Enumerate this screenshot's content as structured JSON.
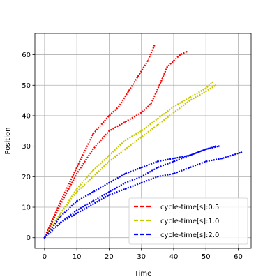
{
  "chart_data": {
    "type": "line",
    "title": "",
    "xlabel": "Time",
    "ylabel": "Position",
    "xlim": [
      -3,
      64
    ],
    "ylim": [
      -3.5,
      67
    ],
    "xticks": [
      0,
      10,
      20,
      30,
      40,
      50,
      60
    ],
    "yticks": [
      0,
      10,
      20,
      30,
      40,
      50,
      60
    ],
    "grid": true,
    "legend_position": "lower-right",
    "line_style": "dashed",
    "series": [
      {
        "name": "cycle-time[s]:0.5",
        "color": "#ff0000",
        "x": [
          0,
          5,
          10,
          15,
          20,
          25,
          30,
          33,
          36,
          38,
          40,
          42,
          44
        ],
        "y": [
          0,
          11,
          21,
          29,
          35,
          38,
          41,
          44,
          51,
          56,
          58,
          60,
          61
        ]
      },
      {
        "name": "cycle-time[s]:0.5",
        "color": "#ff0000",
        "x": [
          0,
          5,
          10,
          15,
          20,
          23,
          26,
          29,
          32,
          34
        ],
        "y": [
          0,
          12,
          23,
          34,
          40,
          43,
          48,
          53,
          58,
          63
        ]
      },
      {
        "name": "cycle-time[s]:1.0",
        "color": "#c8c800",
        "x": [
          0,
          5,
          10,
          15,
          20,
          25,
          30,
          35,
          40,
          45,
          50,
          53
        ],
        "y": [
          0,
          8,
          15,
          20,
          25,
          29,
          33,
          37,
          41,
          45,
          48,
          50
        ]
      },
      {
        "name": "cycle-time[s]:1.0",
        "color": "#c8c800",
        "x": [
          0,
          5,
          10,
          15,
          20,
          25,
          30,
          35,
          40,
          45,
          50,
          52
        ],
        "y": [
          0,
          8,
          16,
          22,
          27,
          32,
          35,
          39,
          43,
          46,
          49,
          51
        ]
      },
      {
        "name": "cycle-time[s]:2.0",
        "color": "#0000ff",
        "x": [
          0,
          5,
          10,
          15,
          20,
          25,
          30,
          35,
          40,
          45,
          50,
          53
        ],
        "y": [
          0,
          5,
          9,
          12,
          15,
          18,
          20,
          23,
          25,
          27,
          29,
          30
        ]
      },
      {
        "name": "cycle-time[s]:2.0",
        "color": "#0000ff",
        "x": [
          0,
          5,
          10,
          15,
          20,
          25,
          30,
          35,
          40,
          45,
          50,
          55,
          61
        ],
        "y": [
          0,
          5,
          8,
          11,
          14,
          16,
          18,
          20,
          21,
          23,
          25,
          26,
          28
        ]
      },
      {
        "name": "cycle-time[s]:2.0",
        "color": "#0000ff",
        "x": [
          0,
          5,
          10,
          15,
          20,
          25,
          30,
          35,
          40,
          45,
          50,
          54
        ],
        "y": [
          0,
          7,
          12,
          15,
          18,
          21,
          23,
          25,
          26,
          27,
          29,
          30
        ]
      }
    ],
    "legend": [
      {
        "label": "cycle-time[s]:0.5",
        "color": "#ff0000"
      },
      {
        "label": "cycle-time[s]:1.0",
        "color": "#c8c800"
      },
      {
        "label": "cycle-time[s]:2.0",
        "color": "#0000ff"
      }
    ]
  }
}
